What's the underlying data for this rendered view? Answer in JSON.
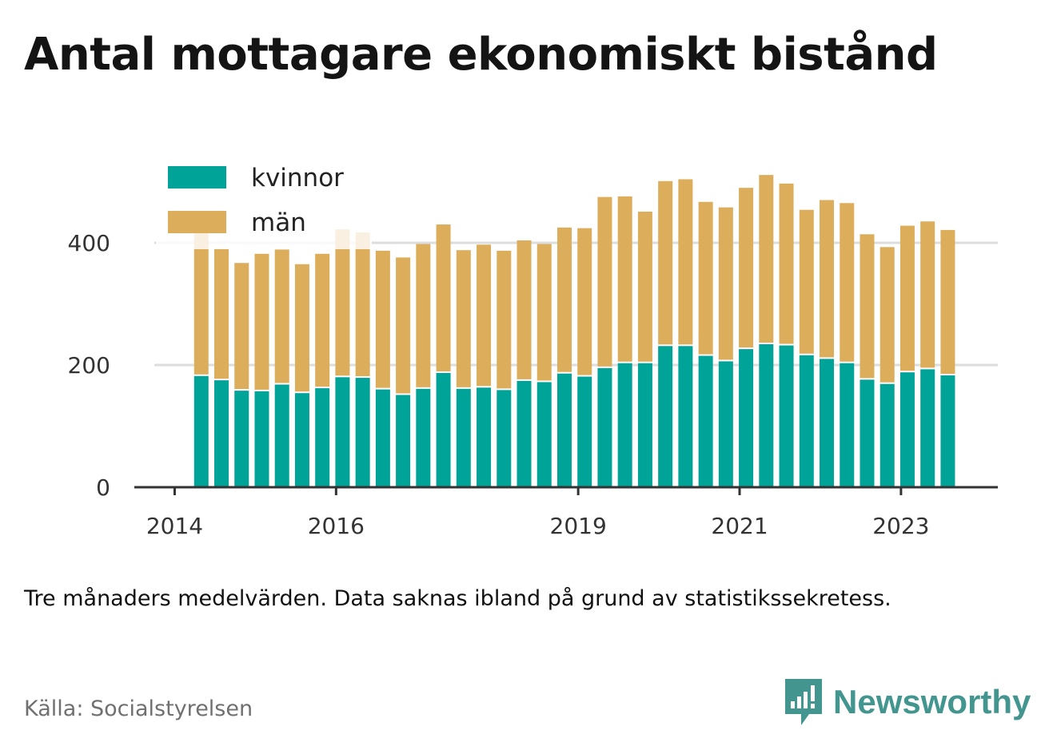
{
  "title": "Antal mottagare ekonomiskt bistånd",
  "note": "Tre månaders medelvärden. Data saknas ibland på grund av statistikssekretess.",
  "source": "Källa: Socialstyrelsen",
  "brand": {
    "name": "Newsworthy",
    "icon": "newsworthy-logo-icon",
    "color": "#43968f"
  },
  "colors": {
    "kvinnor": "#00a398",
    "man": "#dcad5a",
    "axis": "#333333",
    "grid": "#dddddd"
  },
  "chart_data": {
    "type": "bar",
    "stacked": true,
    "legend_position": "top-left",
    "grid": true,
    "ylim": [
      0,
      500
    ],
    "y_ticks": [
      "0",
      "200",
      "400"
    ],
    "x_ticks": [
      {
        "label": "2014",
        "x": 2014
      },
      {
        "label": "2016",
        "x": 2016
      },
      {
        "label": "2019",
        "x": 2019
      },
      {
        "label": "2021",
        "x": 2021
      },
      {
        "label": "2023",
        "x": 2023
      }
    ],
    "xlim": [
      2013.5,
      2024.2
    ],
    "x": [
      2014.33,
      2014.58,
      2014.83,
      2015.08,
      2015.33,
      2015.58,
      2015.83,
      2016.08,
      2016.33,
      2016.58,
      2016.83,
      2017.08,
      2017.33,
      2017.58,
      2017.83,
      2018.08,
      2018.33,
      2018.58,
      2018.83,
      2019.08,
      2019.33,
      2019.58,
      2019.83,
      2020.08,
      2020.33,
      2020.58,
      2020.83,
      2021.08,
      2021.33,
      2021.58,
      2021.83,
      2022.08,
      2022.33,
      2022.58,
      2022.83,
      2023.08,
      2023.33,
      2023.58
    ],
    "series": [
      {
        "name": "kvinnor",
        "values": [
          182,
          175,
          158,
          157,
          168,
          154,
          162,
          180,
          179,
          160,
          151,
          161,
          187,
          161,
          163,
          159,
          174,
          172,
          186,
          181,
          195,
          203,
          203,
          231,
          231,
          215,
          206,
          226,
          234,
          232,
          216,
          210,
          203,
          176,
          169,
          188,
          193,
          183
        ]
      },
      {
        "name": "män",
        "values": [
          240,
          215,
          209,
          225,
          221,
          211,
          220,
          242,
          238,
          227,
          225,
          237,
          243,
          227,
          234,
          228,
          230,
          226,
          239,
          243,
          280,
          273,
          248,
          270,
          273,
          252,
          252,
          264,
          277,
          265,
          238,
          260,
          262,
          238,
          224,
          240,
          242,
          238
        ]
      }
    ]
  }
}
